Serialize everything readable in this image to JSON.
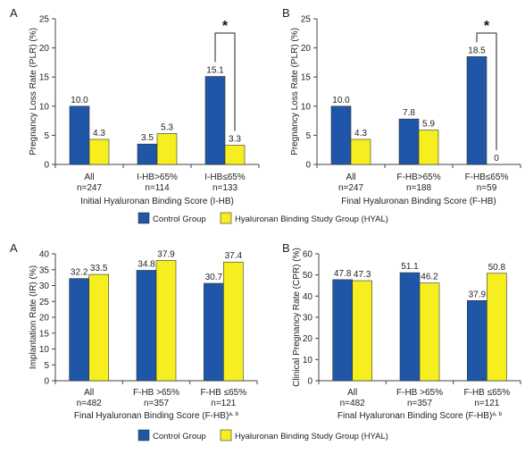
{
  "colors": {
    "control": "#1f56a8",
    "hyal": "#f7ee1f",
    "axis": "#444444"
  },
  "chart_data": [
    {
      "type": "bar",
      "panel": "A",
      "ylabel": "Pregnancy Loss Rate (PLR) (%)",
      "xlabel": "Initial Hyaluronan Binding Score (I-HB)",
      "ylim": [
        0,
        25
      ],
      "yticks": [
        0,
        5,
        10,
        15,
        20,
        25
      ],
      "categories": [
        {
          "name": "All",
          "n": "n=247"
        },
        {
          "name": "I-HB>65%",
          "n": "n=114"
        },
        {
          "name": "I-HB≤65%",
          "n": "n=133"
        }
      ],
      "series": [
        {
          "key": "control",
          "values": [
            10.0,
            3.5,
            15.1
          ],
          "labels": [
            "10.0",
            "3.5",
            "15.1"
          ]
        },
        {
          "key": "hyal",
          "values": [
            4.3,
            5.3,
            3.3
          ],
          "labels": [
            "4.3",
            "5.3",
            "3.3"
          ]
        }
      ],
      "significance": {
        "category": 2,
        "symbol": "*"
      },
      "legend": {
        "items": [
          {
            "key": "control",
            "label": "Control Group"
          },
          {
            "key": "hyal",
            "label": "Hyaluronan Binding Study Group (HYAL)"
          }
        ]
      }
    },
    {
      "type": "bar",
      "panel": "B",
      "ylabel": "Pregnancy Loss Rate (PLR) (%)",
      "xlabel": "Final Hyaluronan Binding Score (F-HB)",
      "ylim": [
        0,
        25
      ],
      "yticks": [
        0,
        5,
        10,
        15,
        20,
        25
      ],
      "categories": [
        {
          "name": "All",
          "n": "n=247"
        },
        {
          "name": "F-HB>65%",
          "n": "n=188"
        },
        {
          "name": "F-HB≤65%",
          "n": "n=59"
        }
      ],
      "series": [
        {
          "key": "control",
          "values": [
            10.0,
            7.8,
            18.5
          ],
          "labels": [
            "10.0",
            "7.8",
            "18.5"
          ]
        },
        {
          "key": "hyal",
          "values": [
            4.3,
            5.9,
            0
          ],
          "labels": [
            "4.3",
            "5.9",
            "0"
          ]
        }
      ],
      "significance": {
        "category": 2,
        "symbol": "*"
      }
    },
    {
      "type": "bar",
      "panel": "A",
      "ylabel": "Implantation Rate (IR) (%)",
      "xlabel": "Final Hyaluronan Binding Score (F-HB)",
      "xlabel_sup": "a, b",
      "ylim": [
        0,
        40
      ],
      "yticks": [
        0,
        5,
        10,
        15,
        20,
        25,
        30,
        35,
        40
      ],
      "categories": [
        {
          "name": "All",
          "n": "n=482"
        },
        {
          "name": "F-HB >65%",
          "n": "n=357"
        },
        {
          "name": "F-HB ≤65%",
          "n": "n=121"
        }
      ],
      "series": [
        {
          "key": "control",
          "values": [
            32.2,
            34.8,
            30.7
          ],
          "labels": [
            "32.2",
            "34.8",
            "30.7"
          ]
        },
        {
          "key": "hyal",
          "values": [
            33.5,
            37.9,
            37.4
          ],
          "labels": [
            "33.5",
            "37.9",
            "37.4"
          ]
        }
      ],
      "legend": {
        "items": [
          {
            "key": "control",
            "label": "Control Group"
          },
          {
            "key": "hyal",
            "label": "Hyaluronan Binding Study Group (HYAL)"
          }
        ]
      }
    },
    {
      "type": "bar",
      "panel": "B",
      "ylabel": "Clinical Pregnancy Rate (CPR) (%)",
      "xlabel": "Final Hyaluronan Binding Score (F-HB)",
      "xlabel_sup": "a, b",
      "ylim": [
        0,
        60
      ],
      "yticks": [
        0,
        10,
        20,
        30,
        40,
        50,
        60
      ],
      "categories": [
        {
          "name": "All",
          "n": "n=482"
        },
        {
          "name": "F-HB >65%",
          "n": "n=357"
        },
        {
          "name": "F-HB ≤65%",
          "n": "n=121"
        }
      ],
      "series": [
        {
          "key": "control",
          "values": [
            47.8,
            51.1,
            37.9
          ],
          "labels": [
            "47.8",
            "51.1",
            "37.9"
          ]
        },
        {
          "key": "hyal",
          "values": [
            47.3,
            46.2,
            50.8
          ],
          "labels": [
            "47.3",
            "46.2",
            "50.8"
          ]
        }
      ]
    }
  ]
}
